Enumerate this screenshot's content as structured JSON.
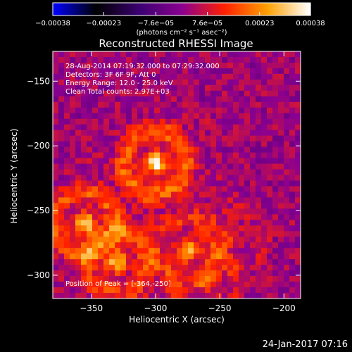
{
  "chart_data": {
    "type": "heatmap",
    "title": "Reconstructed RHESSI Image",
    "xlabel": "Heliocentric X (arcsec)",
    "ylabel": "Heliocentric Y (arcsec)",
    "xlim": [
      -380,
      -187
    ],
    "ylim": [
      -318,
      -127
    ],
    "xticks": [
      -350,
      -300,
      -250,
      -200
    ],
    "xtick_labels": [
      "−350",
      "−300",
      "−250",
      "−200"
    ],
    "yticks": [
      -300,
      -250,
      -200,
      -150
    ],
    "ytick_labels": [
      "−300",
      "−250",
      "−200",
      "−150"
    ],
    "grid_size": [
      44,
      44
    ],
    "annotations": [
      "28-Aug-2014 07:19:32.000 to 07:29:32.000",
      "Detectors: 3F 6F 9F, Att 0",
      "Energy Range: 12.0 - 25.0 keV",
      "Clean     Total counts: 2.97E+03"
    ],
    "peak_label": "Position of Peak = [-364,-250]",
    "peak": [
      -364,
      -250
    ],
    "colorbar": {
      "range": [
        -0.00038,
        0.00038
      ],
      "ticks": [
        -0.00038,
        -0.00023,
        -7.6e-05,
        7.6e-05,
        0.00023,
        0.00038
      ],
      "tick_labels": [
        "−0.00038",
        "−0.00023",
        "−7.6e−05",
        "7.6e−05",
        "0.00023",
        "0.00038"
      ],
      "unit_label": "(photons cm⁻² s⁻¹ asec⁻²)",
      "colormap": [
        "#0000ff",
        "#000000",
        "#3a0070",
        "#8a0090",
        "#ff2000",
        "#ffa000",
        "#ffffff"
      ]
    },
    "sources": [
      {
        "x": -355,
        "y": -260,
        "value": 0.0003
      },
      {
        "x": -330,
        "y": -290,
        "value": 0.00026
      },
      {
        "x": -300,
        "y": -213,
        "value": 0.00034
      },
      {
        "x": -275,
        "y": -280,
        "value": 0.00018
      },
      {
        "x": -262,
        "y": -305,
        "value": 0.00012
      },
      {
        "x": -240,
        "y": -270,
        "value": 8e-05
      }
    ]
  },
  "footer": {
    "timestamp": "24-Jan-2017 07:16"
  }
}
